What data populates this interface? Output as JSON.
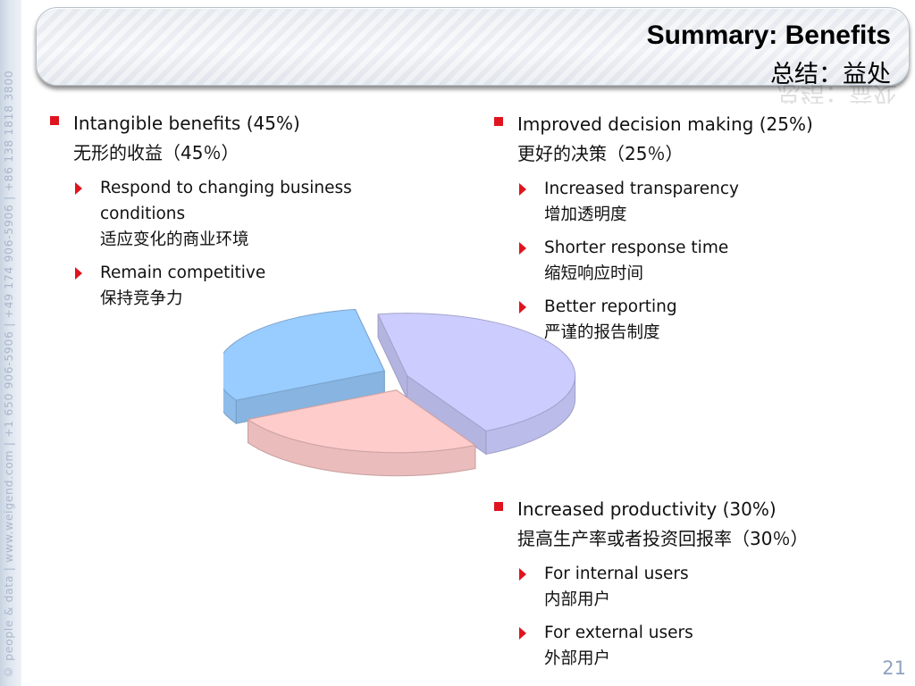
{
  "sidebar": {
    "text": "© people & data | www.weigend.com | +1 650 906-5906 | +49 174 906-5906 | +86 138 1818 3800"
  },
  "title": {
    "en": "Summary: Benefits",
    "zh": "总结：益处"
  },
  "sections": [
    {
      "heading_en": "Intangible benefits (45%)",
      "heading_zh": "无形的收益（45％）",
      "items": [
        {
          "en": "Respond to changing business conditions",
          "zh": "适应变化的商业环境"
        },
        {
          "en": "Remain competitive",
          "zh": "保持竞争力"
        }
      ]
    },
    {
      "heading_en": "Improved decision making (25%)",
      "heading_zh": "更好的决策（25％）",
      "items": [
        {
          "en": "Increased transparency",
          "zh": "增加透明度"
        },
        {
          "en": "Shorter response time",
          "zh": "缩短响应时间"
        },
        {
          "en": "Better reporting",
          "zh": "严谨的报告制度"
        }
      ]
    },
    {
      "heading_en": "Increased productivity (30%)",
      "heading_zh": "提高生产率或者投资回报率（30％）",
      "items": [
        {
          "en": "For internal users",
          "zh": "内部用户"
        },
        {
          "en": "For external users",
          "zh": "外部用户"
        }
      ]
    }
  ],
  "chart_data": {
    "type": "pie",
    "categories": [
      "Intangible benefits",
      "Improved decision making",
      "Increased productivity"
    ],
    "values": [
      45,
      25,
      30
    ],
    "colors": [
      "#ccccff",
      "#ffcccc",
      "#99ccff"
    ],
    "title": ""
  },
  "page_number": "21",
  "colors": {
    "bullet": "#e0141e",
    "page_number": "#8ea2bf"
  }
}
